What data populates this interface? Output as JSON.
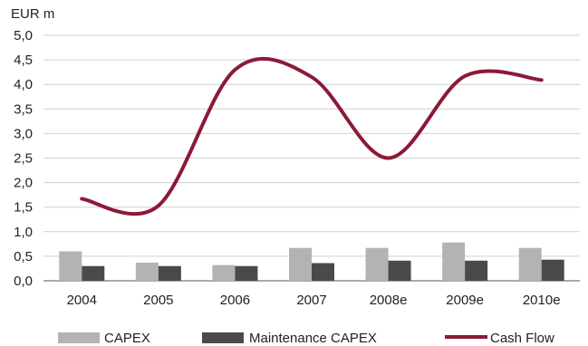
{
  "chart_data": {
    "type": "bar",
    "unit_label": "EUR m",
    "categories": [
      "2004",
      "2005",
      "2006",
      "2007",
      "2008e",
      "2009e",
      "2010e"
    ],
    "series": [
      {
        "name": "CAPEX",
        "type": "bar",
        "color": "#b3b3b3",
        "values": [
          0.6,
          0.37,
          0.32,
          0.67,
          0.67,
          0.78,
          0.67
        ]
      },
      {
        "name": "Maintenance CAPEX",
        "type": "bar",
        "color": "#4a4a4a",
        "values": [
          0.3,
          0.3,
          0.3,
          0.36,
          0.41,
          0.41,
          0.43
        ]
      },
      {
        "name": "Cash Flow",
        "type": "line",
        "smooth": true,
        "color": "#8b1a36",
        "values": [
          1.67,
          1.53,
          4.3,
          4.15,
          2.5,
          4.17,
          4.09
        ]
      }
    ],
    "ylim": [
      0,
      5.0
    ],
    "yticks": [
      "0,0",
      "0,5",
      "1,0",
      "1,5",
      "2,0",
      "2,5",
      "3,0",
      "3,5",
      "4,0",
      "4,5",
      "5,0"
    ],
    "grid": true,
    "legend_position": "bottom"
  }
}
